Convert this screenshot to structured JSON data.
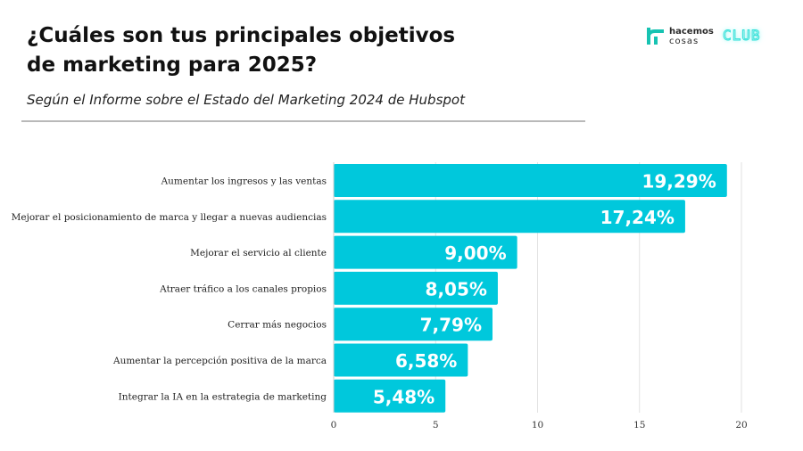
{
  "header": {
    "title_line1": "¿Cuáles son tus principales objetivos",
    "title_line2": "de marketing para 2025?",
    "subtitle": "Según el Informe sobre el Estado del Marketing 2024 de Hubspot"
  },
  "logo": {
    "line1": "hacemos",
    "line2": "cosas",
    "club": "CLUB",
    "mark_color": "#17c3b2"
  },
  "colors": {
    "bar": "#00c8dc",
    "grid": "#e2e2e2",
    "axis_text": "#333333",
    "label_text": "#222222",
    "value_text": "#ffffff"
  },
  "chart_data": {
    "type": "bar",
    "orientation": "horizontal",
    "categories": [
      "Aumentar los ingresos y las ventas",
      "Mejorar el posicionamiento de marca y llegar a nuevas audiencias",
      "Mejorar el servicio al cliente",
      "Atraer tráfico a los canales propios",
      "Cerrar más negocios",
      "Aumentar la percepción positiva de la marca",
      "Integrar la IA en la estrategia de marketing"
    ],
    "values": [
      19.29,
      17.24,
      9.0,
      8.05,
      7.79,
      6.58,
      5.48
    ],
    "value_labels": [
      "19,29%",
      "17,24%",
      "9,00%",
      "8,05%",
      "7,79%",
      "6,58%",
      "5,48%"
    ],
    "xlim": [
      0,
      20
    ],
    "xticks": [
      0,
      5,
      10,
      15,
      20
    ],
    "xtick_labels": [
      "0",
      "5",
      "10",
      "15",
      "20"
    ],
    "grid": true
  }
}
